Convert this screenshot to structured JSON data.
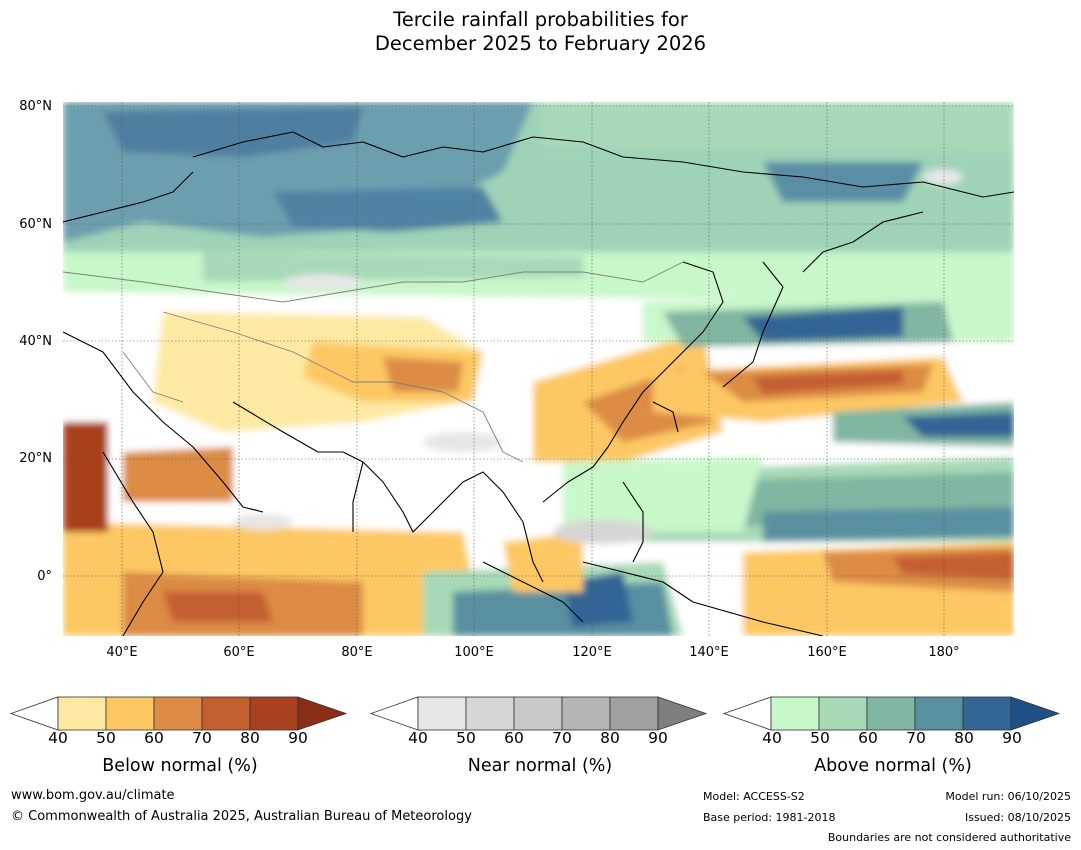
{
  "title": {
    "line1": "Tercile rainfall probabilities for",
    "line2": "December 2025 to February 2026"
  },
  "map": {
    "lat_ticks": [
      "80°N",
      "60°N",
      "40°N",
      "20°N",
      "0°"
    ],
    "lon_ticks": [
      "40°E",
      "60°E",
      "80°E",
      "100°E",
      "120°E",
      "140°E",
      "160°E",
      "180°"
    ],
    "extent": {
      "lon_min": 30,
      "lon_max": 192,
      "lat_min": -10,
      "lat_max": 81
    }
  },
  "colorbars": [
    {
      "name": "below",
      "label": "Below normal (%)",
      "ticks": [
        "40",
        "50",
        "60",
        "70",
        "80",
        "90"
      ],
      "colors": [
        "#ffffff",
        "#fde9a1",
        "#fdc864",
        "#dc8c45",
        "#c45f30",
        "#a9411f",
        "#8a2e17"
      ]
    },
    {
      "name": "near",
      "label": "Near normal (%)",
      "ticks": [
        "40",
        "50",
        "60",
        "70",
        "80",
        "90"
      ],
      "colors": [
        "#ffffff",
        "#e6e6e6",
        "#d6d6d6",
        "#c8c8c8",
        "#b4b4b4",
        "#a0a0a0",
        "#7f7f7f"
      ]
    },
    {
      "name": "above",
      "label": "Above normal (%)",
      "ticks": [
        "40",
        "50",
        "60",
        "70",
        "80",
        "90"
      ],
      "colors": [
        "#ffffff",
        "#c8f7c9",
        "#a8d9b7",
        "#80b6a2",
        "#5890a0",
        "#336595",
        "#1e4f85"
      ]
    }
  ],
  "footer": {
    "website": "www.bom.gov.au/climate",
    "copyright": "© Commonwealth of Australia 2025, Australian Bureau of Meteorology",
    "model": "Model: ACCESS-S2",
    "base_period": "Base period: 1981-2018",
    "model_run": "Model run: 06/10/2025",
    "issued": "Issued: 08/10/2025",
    "disclaimer": "Boundaries are not considered authoritative"
  }
}
